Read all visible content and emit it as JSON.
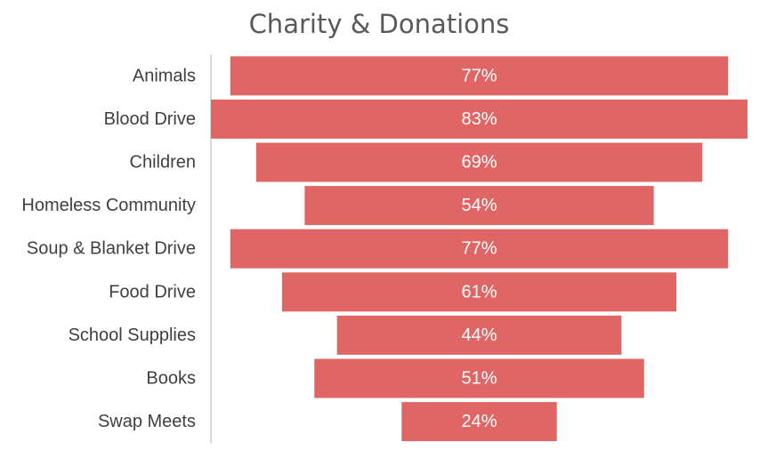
{
  "chart_data": {
    "type": "bar",
    "subtype": "funnel",
    "title": "Charity & Donations",
    "categories": [
      "Animals",
      "Blood Drive",
      "Children",
      "Homeless Community",
      "Soup & Blanket Drive",
      "Food Drive",
      "School Supplies",
      "Books",
      "Swap Meets"
    ],
    "values": [
      77,
      83,
      69,
      54,
      77,
      61,
      44,
      51,
      24
    ],
    "value_labels": [
      "77%",
      "83%",
      "69%",
      "54%",
      "77%",
      "61%",
      "44%",
      "51%",
      "24%"
    ],
    "unit": "%",
    "xlim": [
      0,
      83
    ],
    "bar_color": "#E06666",
    "label_color": "#ffffff",
    "category_color": "#404040",
    "axis_color": "#d9d9d9",
    "grid": false,
    "legend": "none"
  }
}
